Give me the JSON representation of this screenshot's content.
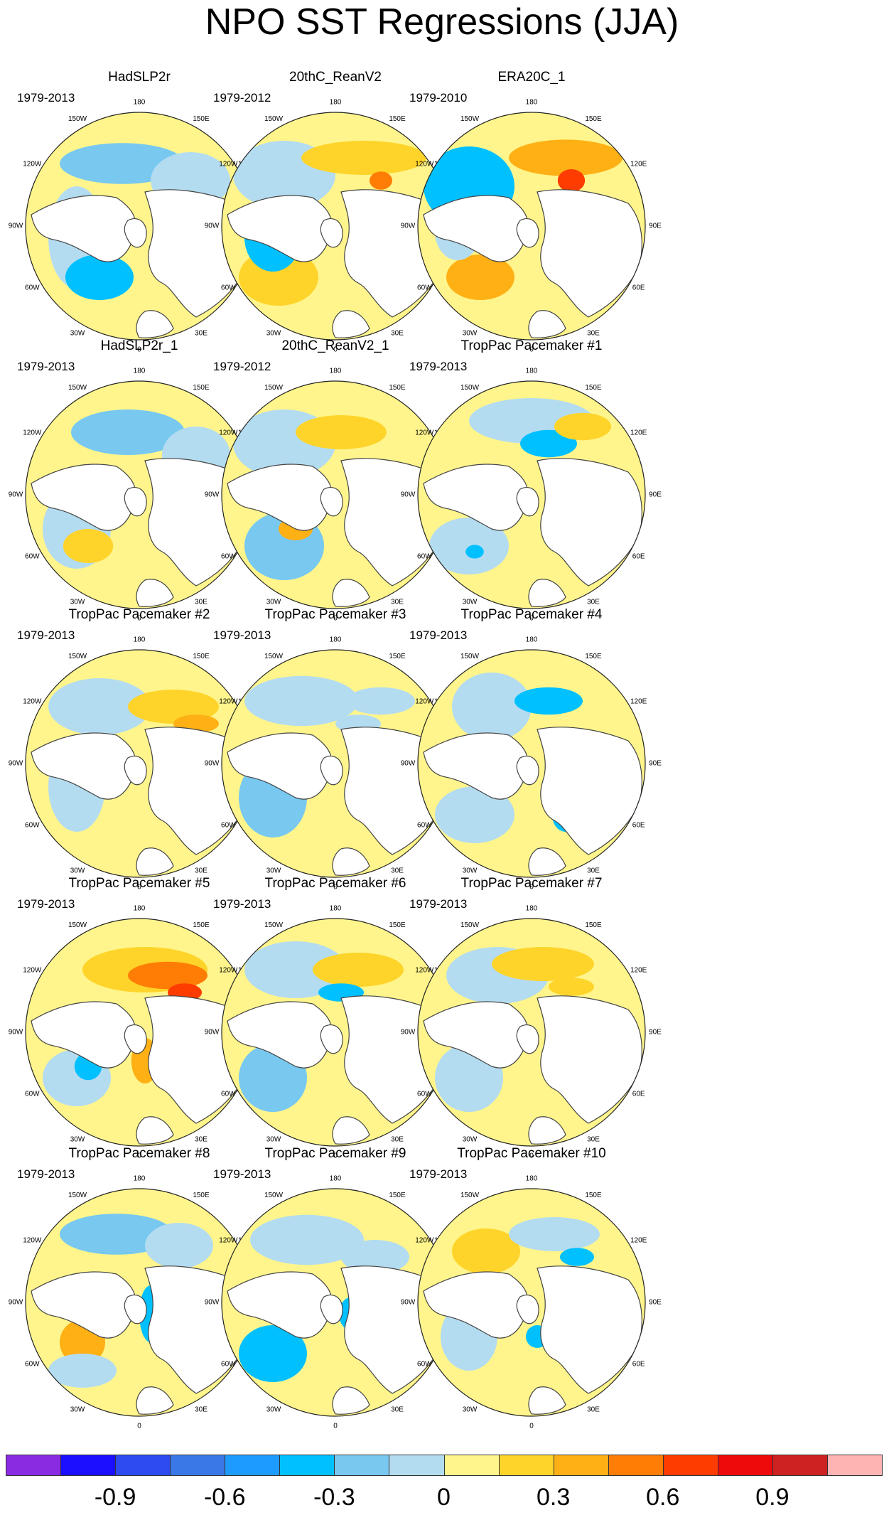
{
  "title": "NPO SST Regressions (JJA)",
  "panels": [
    {
      "title": "HadSLP2r",
      "period": "1979-2013"
    },
    {
      "title": "20thC_ReanV2",
      "period": "1979-2012"
    },
    {
      "title": "ERA20C_1",
      "period": "1979-2010"
    },
    {
      "title": "HadSLP2r_1",
      "period": "1979-2013"
    },
    {
      "title": "20thC_ReanV2_1",
      "period": "1979-2012"
    },
    {
      "title": "TropPac Pacemaker #1",
      "period": "1979-2013"
    },
    {
      "title": "TropPac Pacemaker #2",
      "period": "1979-2013"
    },
    {
      "title": "TropPac Pacemaker #3",
      "period": "1979-2013"
    },
    {
      "title": "TropPac Pacemaker #4",
      "period": "1979-2013"
    },
    {
      "title": "TropPac Pacemaker #5",
      "period": "1979-2013"
    },
    {
      "title": "TropPac Pacemaker #6",
      "period": "1979-2013"
    },
    {
      "title": "TropPac Pacemaker #7",
      "period": "1979-2013"
    },
    {
      "title": "TropPac Pacemaker #8",
      "period": "1979-2013"
    },
    {
      "title": "TropPac Pacemaker #9",
      "period": "1979-2013"
    },
    {
      "title": "TropPac Pacemaker #10",
      "period": "1979-2013"
    }
  ],
  "longitude_labels": [
    "180",
    "150E",
    "120E",
    "90E",
    "60E",
    "30E",
    "0",
    "30W",
    "60W",
    "90W",
    "120W",
    "150W"
  ],
  "colorbar": {
    "colors": [
      "#8a2be2",
      "#1a10ff",
      "#2d4bf0",
      "#3a78e8",
      "#1e9bff",
      "#00c0ff",
      "#78c8f0",
      "#b4dcf0",
      "#fff58c",
      "#ffd42a",
      "#ffb014",
      "#ff7d05",
      "#ff3c00",
      "#ee0a0a",
      "#cc2222",
      "#ffb4b4"
    ],
    "tick_labels": [
      "-0.9",
      "-0.6",
      "-0.3",
      "0",
      "0.3",
      "0.6",
      "0.9"
    ]
  }
}
